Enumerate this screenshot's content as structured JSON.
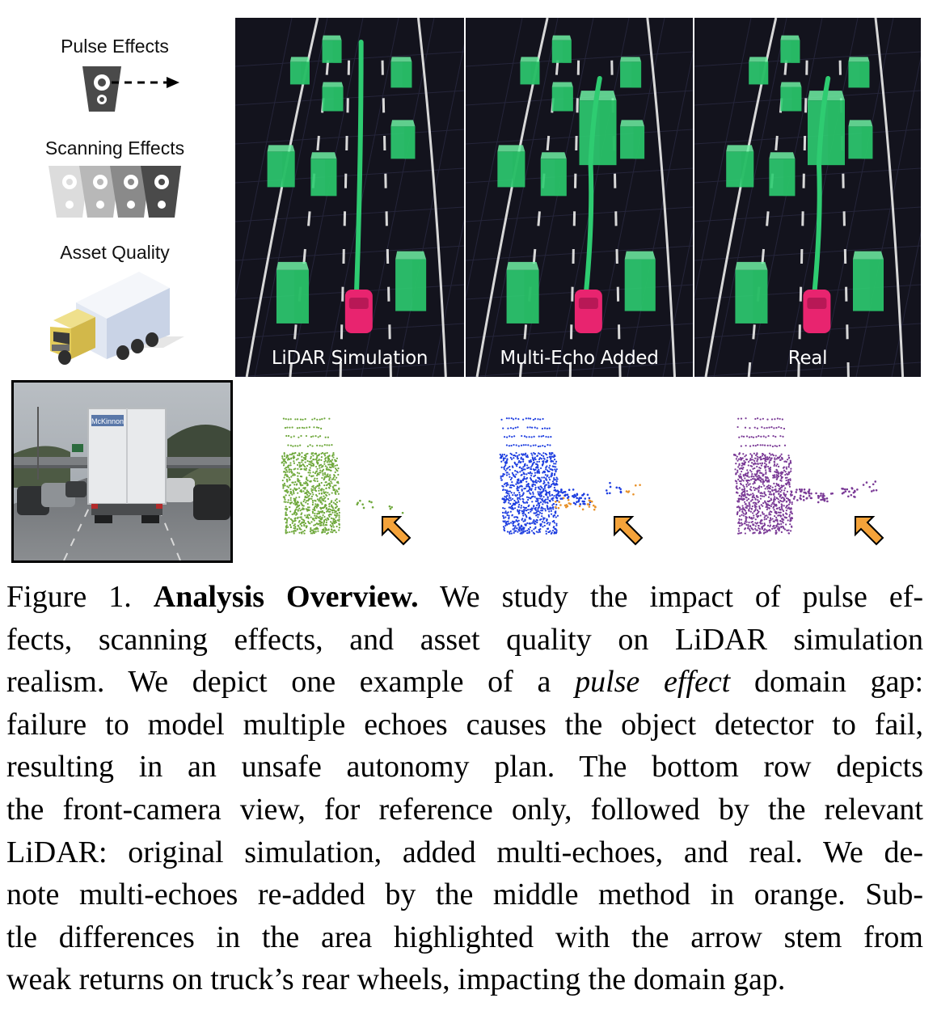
{
  "legend": {
    "pulse_effects": "Pulse Effects",
    "scanning_effects": "Scanning Effects",
    "asset_quality": "Asset Quality"
  },
  "panels": [
    {
      "label": "LiDAR Simulation"
    },
    {
      "label": "Multi-Echo Added"
    },
    {
      "label": "Real"
    }
  ],
  "camera": {
    "truck_text": "McKinnon"
  },
  "caption": {
    "figure_number": "Figure 1.",
    "bold_title": "Analysis Overview.",
    "lines": [
      "We study the impact of pulse ef-",
      "fects, scanning effects, and asset quality on LiDAR simulation",
      "realism. We depict one example of a",
      "pulse effect",
      "domain gap:",
      "failure to model multiple echoes causes the object detector to fail,",
      "resulting in an unsafe autonomy plan. The bottom row depicts",
      "the front-camera view, for reference only, followed by the relevant",
      "LiDAR: original simulation, added multi-echoes, and real. We de-",
      "note multi-echoes re-added by the middle method in orange. Sub-",
      "tle differences in the area highlighted with the arrow stem from",
      "weak returns on truck’s rear wheels, impacting the domain gap."
    ]
  },
  "colors": {
    "panel_bg": "#13131d",
    "car_box": "#2ecc71",
    "ego_car": "#e8246f",
    "sim_points": "#6fa83c",
    "multi_points": "#1f3fe0",
    "echo_points": "#e8922a",
    "real_points": "#7a3a96",
    "arrow": "#f5a33a"
  }
}
